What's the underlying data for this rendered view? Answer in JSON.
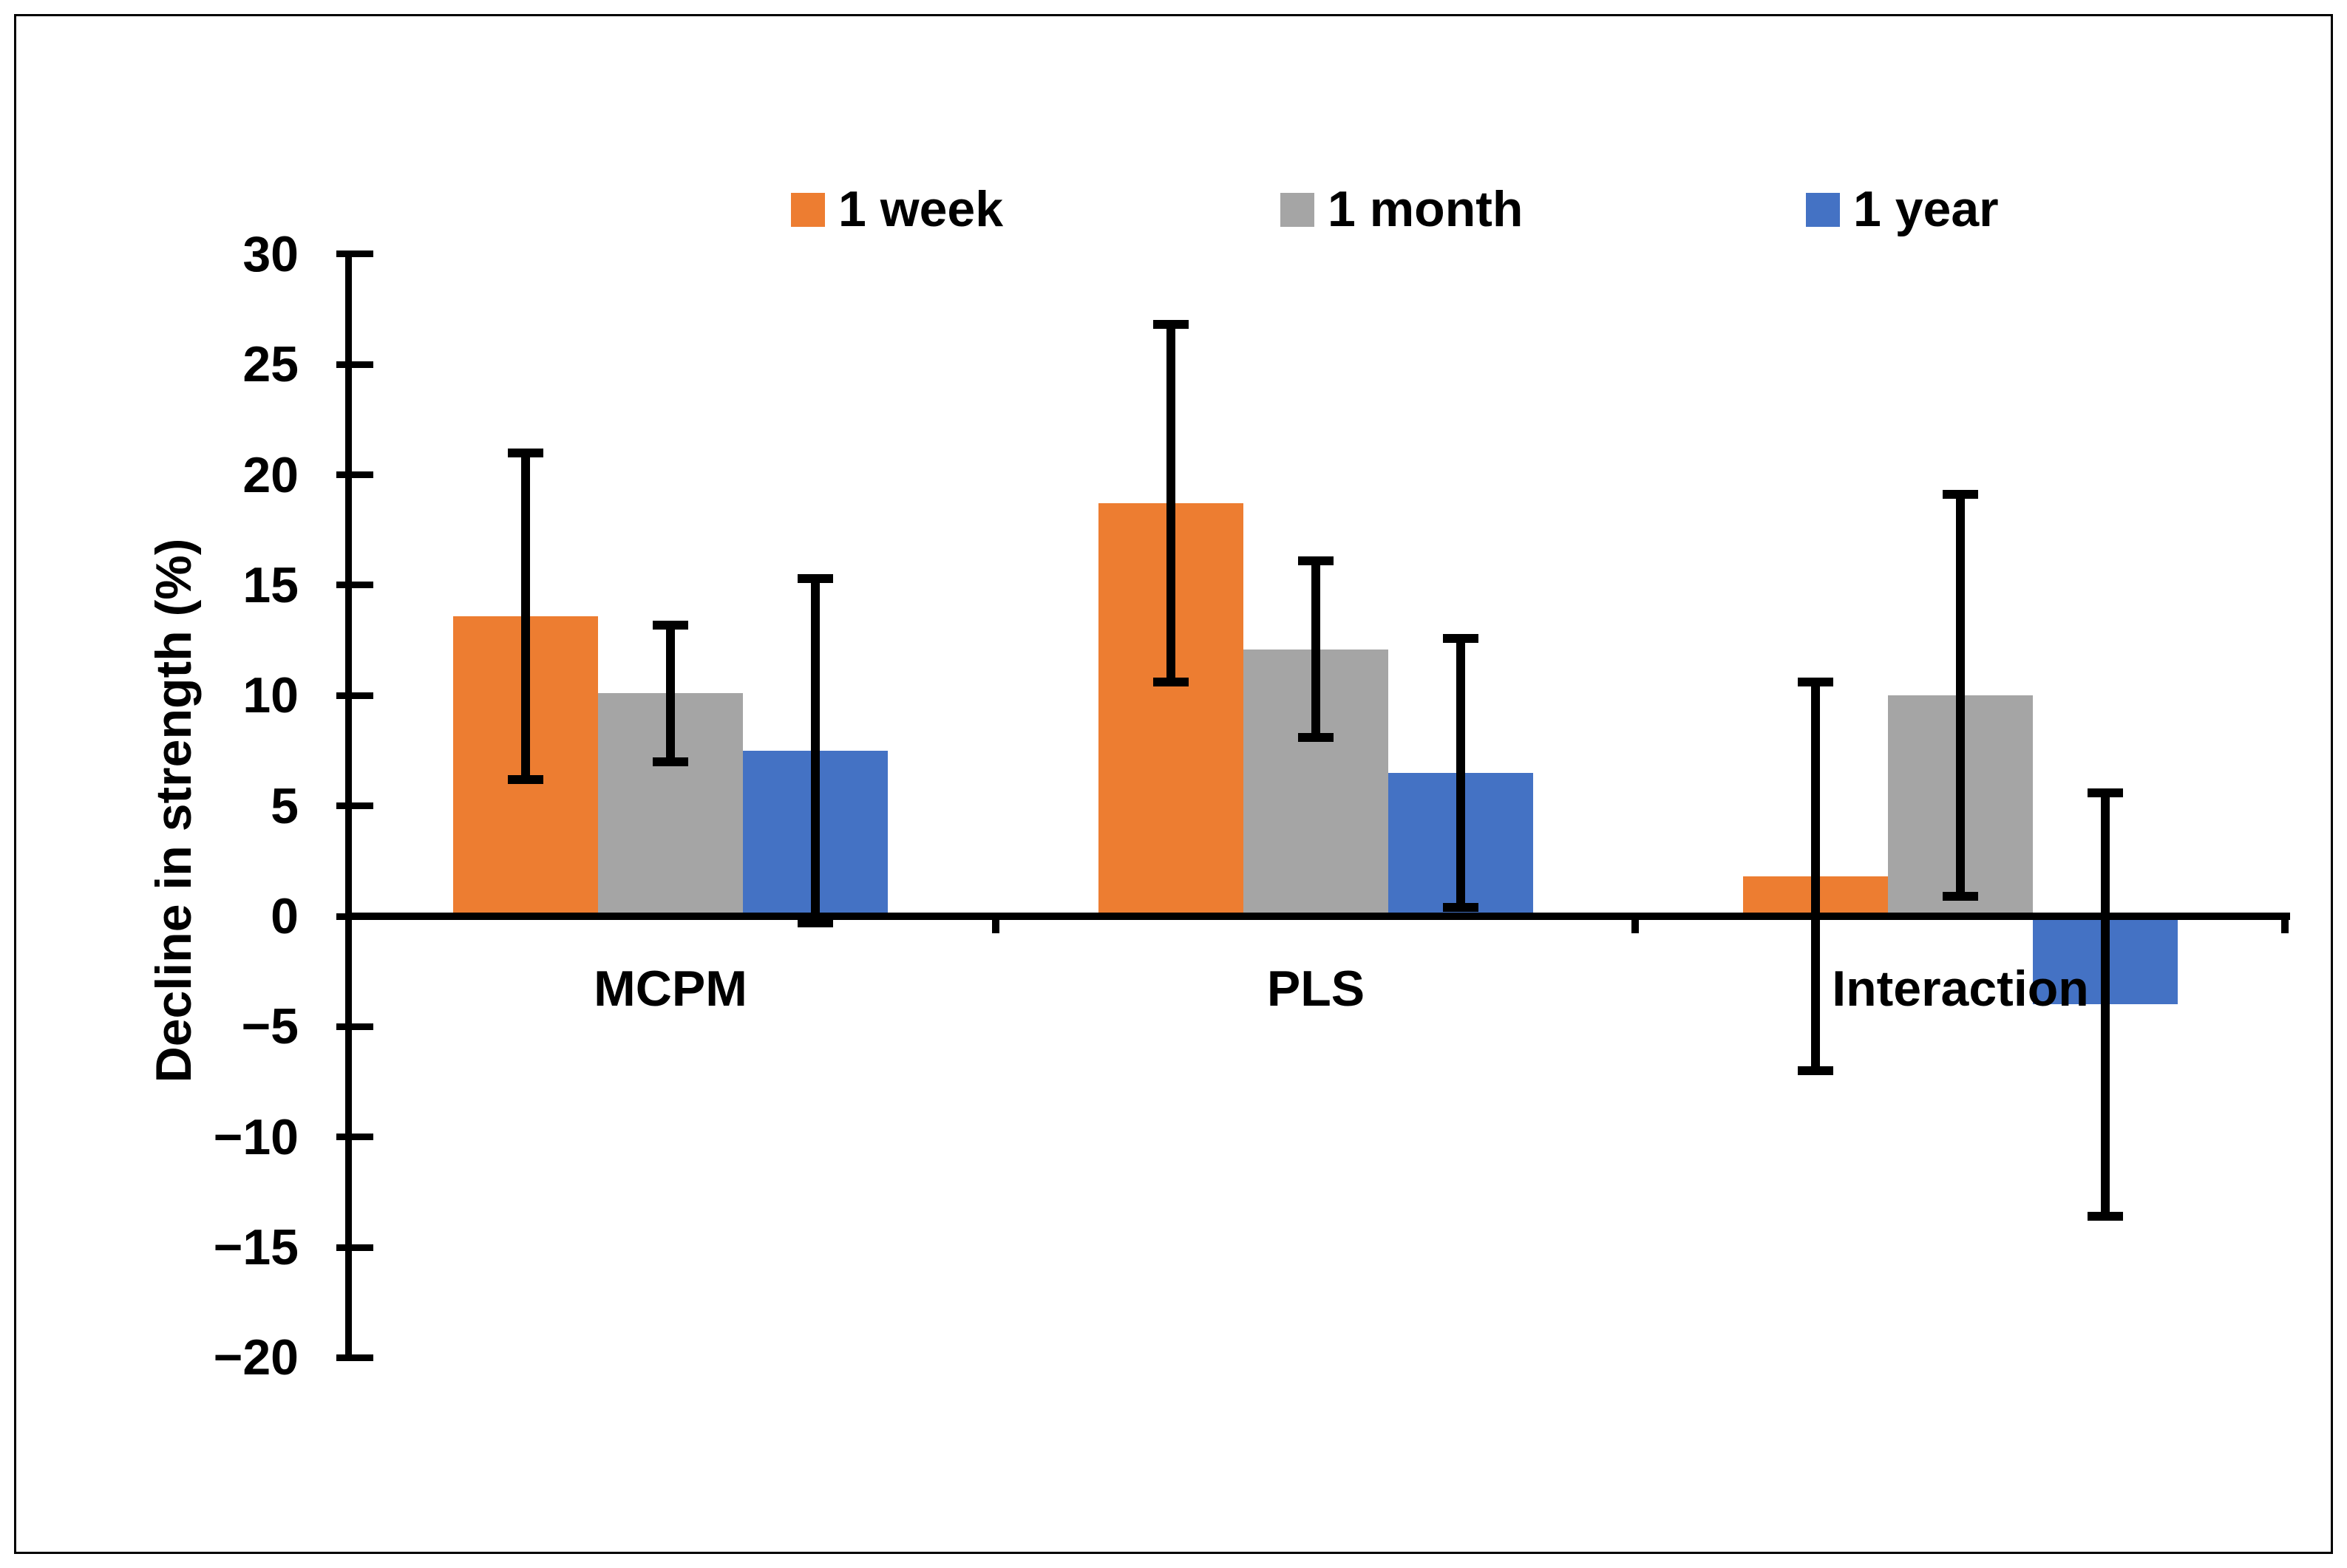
{
  "chart_data": {
    "type": "bar",
    "title": "",
    "categories": [
      "MCPM",
      "PLS",
      "Interaction"
    ],
    "series": [
      {
        "name": "1 week",
        "color": "#ED7D31",
        "values": [
          13.6,
          18.7,
          1.8
        ],
        "errors": [
          7.4,
          8.1,
          8.8
        ]
      },
      {
        "name": "1 month",
        "color": "#A5A5A5",
        "values": [
          10.1,
          12.1,
          10.0
        ],
        "errors": [
          3.1,
          4.0,
          9.1
        ]
      },
      {
        "name": "1 year",
        "color": "#4472C4",
        "values": [
          7.5,
          6.5,
          -4.0
        ],
        "errors": [
          7.8,
          6.1,
          9.6
        ]
      }
    ],
    "xlabel": "",
    "ylabel": "Decline in strength (%)",
    "ylim": [
      -20,
      30
    ],
    "y_tick_step": 5,
    "y_tick_labels": [
      "30",
      "25",
      "20",
      "15",
      "10",
      "5",
      "0",
      "−5",
      "−10",
      "−15",
      "−20"
    ],
    "grid": false,
    "legend_position": "top",
    "error_bar_color": "#000000",
    "axis_color": "#000000"
  }
}
